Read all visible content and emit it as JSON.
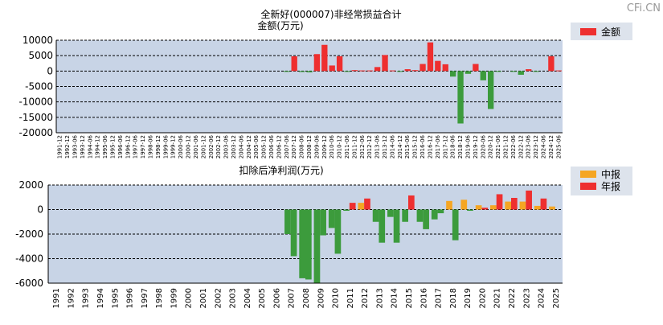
{
  "watermark": "CFi.CN",
  "colors": {
    "panel_bg": "#c8d4e6",
    "bar_red": "#ee2f2f",
    "bar_green": "#3c9b3c",
    "bar_orange": "#f5a623",
    "grid": "#000000",
    "legend_bg": "#dde3ec"
  },
  "chart_data": [
    {
      "type": "bar",
      "title": "全新好(000007)非经常损益合计",
      "ylabel": "金额(万元)",
      "ylim": [
        -20000,
        10000
      ],
      "yticks": [
        10000,
        5000,
        0,
        -5000,
        -10000,
        -15000,
        -20000
      ],
      "ytick_labels": [
        "10000",
        "5000",
        "0",
        "-5000",
        "-10000",
        "-15000",
        "-20000"
      ],
      "legend": [
        {
          "name": "金额",
          "color": "#ee2f2f"
        }
      ],
      "legend_position": "top-right",
      "categories": [
        "1991-12",
        "1992-12",
        "1993-06",
        "1993-12",
        "1994-06",
        "1994-12",
        "1995-06",
        "1995-12",
        "1996-06",
        "1996-12",
        "1997-06",
        "1997-12",
        "1998-06",
        "1998-12",
        "1999-06",
        "1999-12",
        "2000-06",
        "2000-12",
        "2001-06",
        "2001-12",
        "2002-06",
        "2002-12",
        "2003-06",
        "2003-12",
        "2004-06",
        "2004-12",
        "2005-06",
        "2005-12",
        "2006-06",
        "2006-12",
        "2007-06",
        "2007-12",
        "2008-06",
        "2008-12",
        "2009-06",
        "2009-12",
        "2010-06",
        "2010-12",
        "2011-06",
        "2011-12",
        "2012-06",
        "2012-12",
        "2013-06",
        "2013-12",
        "2014-06",
        "2014-12",
        "2015-06",
        "2015-12",
        "2016-06",
        "2016-12",
        "2017-06",
        "2017-12",
        "2018-06",
        "2018-12",
        "2019-06",
        "2019-12",
        "2020-06",
        "2020-12",
        "2021-06",
        "2021-12",
        "2022-06",
        "2022-12",
        "2023-06",
        "2023-12",
        "2024-06",
        "2024-12",
        "2025-06"
      ],
      "values": [
        0,
        0,
        0,
        0,
        0,
        0,
        0,
        0,
        0,
        0,
        0,
        0,
        0,
        0,
        0,
        0,
        0,
        0,
        0,
        0,
        0,
        0,
        0,
        0,
        0,
        0,
        0,
        0,
        0,
        0,
        -200,
        4800,
        -300,
        -400,
        5500,
        8500,
        1800,
        4800,
        -200,
        300,
        200,
        200,
        1300,
        5200,
        200,
        -200,
        600,
        300,
        2300,
        9300,
        3300,
        2200,
        -1800,
        -17000,
        -900,
        2300,
        -3000,
        -12300,
        -200,
        0,
        -100,
        -1200,
        600,
        -200,
        0,
        4800,
        200
      ]
    },
    {
      "type": "bar",
      "title": "扣除后净利润(万元)",
      "ylim": [
        -6000,
        2000
      ],
      "yticks": [
        2000,
        0,
        -2000,
        -4000,
        -6000
      ],
      "ytick_labels": [
        "2000",
        "0",
        "-2000",
        "-4000",
        "-6000"
      ],
      "legend": [
        {
          "name": "中报",
          "color": "#f5a623"
        },
        {
          "name": "年报",
          "color": "#ee2f2f"
        }
      ],
      "legend_position": "top-right",
      "categories": [
        "1991",
        "1992",
        "1993",
        "1994",
        "1995",
        "1996",
        "1997",
        "1998",
        "1999",
        "2000",
        "2001",
        "2002",
        "2003",
        "2004",
        "2005",
        "2006",
        "2007",
        "2008",
        "2009",
        "2010",
        "2011",
        "2012",
        "2013",
        "2014",
        "2015",
        "2016",
        "2017",
        "2018",
        "2019",
        "2020",
        "2021",
        "2022",
        "2023",
        "2024",
        "2025"
      ],
      "series": [
        {
          "name": "中报",
          "values": [
            0,
            0,
            0,
            0,
            0,
            0,
            0,
            0,
            0,
            0,
            0,
            0,
            0,
            0,
            0,
            0,
            -2000,
            -5600,
            -6000,
            -1500,
            -100,
            550,
            -1000,
            -600,
            -1000,
            -1000,
            -800,
            700,
            800,
            350,
            350,
            650,
            650,
            300,
            250
          ]
        },
        {
          "name": "年报",
          "values": [
            0,
            0,
            0,
            0,
            0,
            0,
            0,
            0,
            0,
            0,
            0,
            0,
            0,
            0,
            0,
            0,
            -3800,
            -5700,
            -2100,
            -3600,
            550,
            900,
            -2700,
            -2700,
            1150,
            -1600,
            -300,
            -2500,
            -100,
            150,
            1250,
            950,
            1550,
            900,
            null
          ]
        }
      ]
    }
  ]
}
